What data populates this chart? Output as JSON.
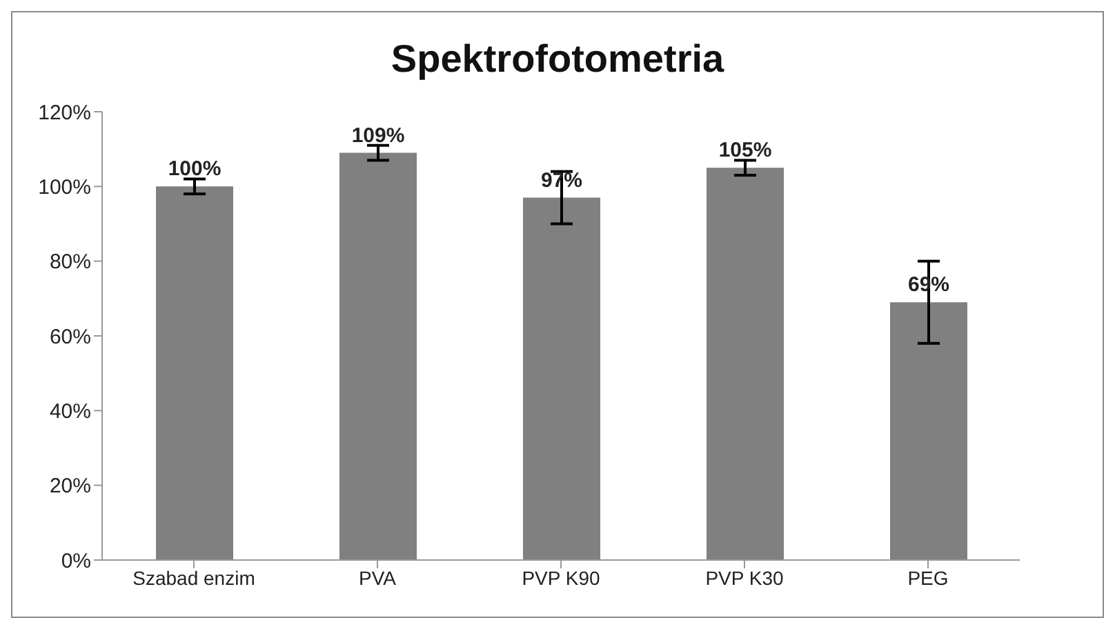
{
  "chart_data": {
    "type": "bar",
    "title": "Spektrofotometria",
    "categories": [
      "Szabad enzim",
      "PVA",
      "PVP K90",
      "PVP K30",
      "PEG"
    ],
    "values": [
      100,
      109,
      97,
      105,
      69
    ],
    "errors": [
      2,
      2,
      7,
      2,
      11
    ],
    "value_labels": [
      "100%",
      "109%",
      "97%",
      "105%",
      "69%"
    ],
    "color": "#808080",
    "ylim": [
      0,
      120
    ],
    "yticks": [
      {
        "value": 0,
        "label": "0%"
      },
      {
        "value": 20,
        "label": "20%"
      },
      {
        "value": 40,
        "label": "40%"
      },
      {
        "value": 60,
        "label": "60%"
      },
      {
        "value": 80,
        "label": "80%"
      },
      {
        "value": 100,
        "label": "100%"
      },
      {
        "value": 120,
        "label": "120%"
      }
    ],
    "grid": false
  }
}
